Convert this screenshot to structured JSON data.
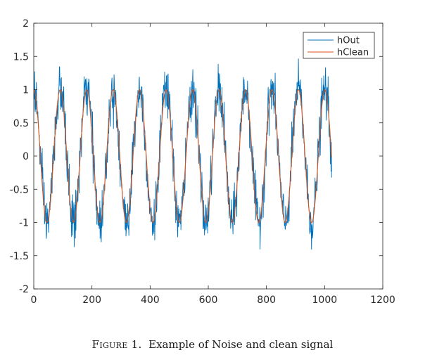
{
  "chart_data": {
    "type": "line",
    "title": "",
    "xlabel": "",
    "ylabel": "",
    "xlim": [
      0,
      1200
    ],
    "ylim": [
      -2,
      2
    ],
    "xticks": [
      0,
      200,
      400,
      600,
      800,
      1000,
      1200
    ],
    "yticks": [
      2,
      1.5,
      1,
      0.5,
      0,
      -0.5,
      -1,
      -1.5,
      -2
    ],
    "xtick_labels": [
      "0",
      "200",
      "400",
      "600",
      "800",
      "1000",
      "1200"
    ],
    "ytick_labels": [
      "2",
      "1.5",
      "1",
      "0.5",
      "0",
      "-0.5",
      "-1",
      "-1.5",
      "-2"
    ],
    "grid": false,
    "legend_position": "top-right",
    "series": [
      {
        "name": "hOut",
        "color": "#0072BD",
        "x_range": [
          0,
          1024
        ],
        "form": "sine plus random noise",
        "amplitude": 1,
        "period": 91,
        "phase_peak_x": 0,
        "noise_std": 0.18,
        "observed_max": 1.53,
        "observed_min": -1.52
      },
      {
        "name": "hClean",
        "color": "#D95319",
        "x_range": [
          0,
          1024
        ],
        "form": "sine",
        "amplitude": 1,
        "period": 91,
        "phase_peak_x": 0
      }
    ]
  },
  "caption": {
    "label": "Figure 1.",
    "text": "Example of Noise and clean signal"
  }
}
